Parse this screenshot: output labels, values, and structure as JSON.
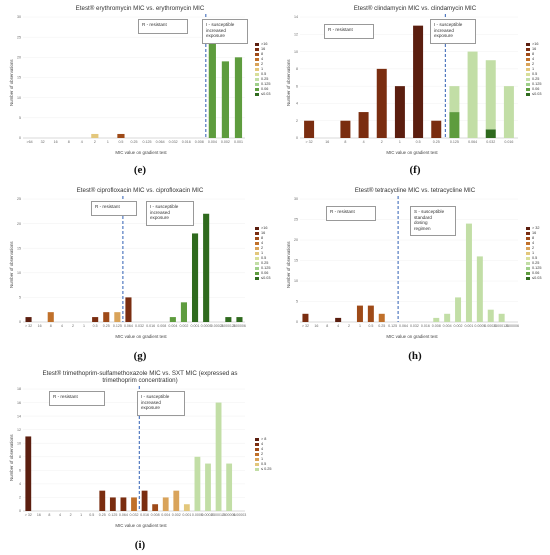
{
  "panels": [
    {
      "id": "e",
      "title": "Etest® erythromycin MIC vs. erythromycin MIC",
      "label": "(e)",
      "ylabel": "Number of observations",
      "xlabel": "MIC value on gradient test",
      "r_box": "R - resistant",
      "i_box": "I - susceptible\nincreased\nexposure",
      "categories": [
        ">64",
        "32",
        "16",
        "8",
        "4",
        "2",
        "1",
        "0.5",
        "0.25",
        "0.125",
        "0.064",
        "0.032",
        "0.016",
        "0.008",
        "0.004",
        "0.002",
        "0.001"
      ],
      "ylim": [
        0,
        30
      ],
      "yticks": [
        0,
        5,
        10,
        15,
        20,
        25,
        30
      ],
      "breakpoint_index": 13.5,
      "legend": [
        ">16",
        "16",
        "8",
        "4",
        "2",
        "1",
        "0.5",
        "0.25",
        "0.125",
        "0.06",
        "≤0.03"
      ],
      "legend_colors": [
        "#5b1e0f",
        "#7a2d10",
        "#9e4a18",
        "#c0702a",
        "#d9a35a",
        "#e3c77c",
        "#d8df9a",
        "#c2dea6",
        "#9fcf8a",
        "#5e9c3e",
        "#2f6a1e"
      ],
      "stacks": [
        [],
        [],
        [],
        [],
        [],
        [
          {
            "c": 5,
            "v": 1
          }
        ],
        [],
        [
          {
            "c": 2,
            "v": 1
          }
        ],
        [],
        [],
        [],
        [],
        [],
        [],
        [
          {
            "c": 9,
            "v": 25
          }
        ],
        [
          {
            "c": 9,
            "v": 19
          }
        ],
        [
          {
            "c": 9,
            "v": 20
          }
        ]
      ]
    },
    {
      "id": "f",
      "title": "Etest® clindamycin MIC vs. clindamycin MIC",
      "label": "(f)",
      "ylabel": "Number of observations",
      "xlabel": "MIC value on gradient test",
      "r_box": "R - resistant",
      "i_box": "I - susceptible\nincreased\nexposure",
      "categories": [
        "> 32",
        "16",
        "8",
        "4",
        "2",
        "1",
        "0.5",
        "0.25",
        "0.125",
        "0.064",
        "0.032",
        "0.016"
      ],
      "ylim": [
        0,
        14
      ],
      "yticks": [
        0,
        2,
        4,
        6,
        8,
        10,
        12,
        14
      ],
      "breakpoint_index": 7.5,
      "legend": [
        ">16",
        "16",
        "8",
        "4",
        "2",
        "1",
        "0.5",
        "0.25",
        "0.125",
        "0.06",
        "≤0.03"
      ],
      "legend_colors": [
        "#5b1e0f",
        "#7a2d10",
        "#9e4a18",
        "#c0702a",
        "#d9a35a",
        "#e3c77c",
        "#d8df9a",
        "#c2dea6",
        "#9fcf8a",
        "#5e9c3e",
        "#2f6a1e"
      ],
      "stacks": [
        [
          {
            "c": 1,
            "v": 2
          }
        ],
        [],
        [
          {
            "c": 1,
            "v": 2
          }
        ],
        [
          {
            "c": 1,
            "v": 3
          }
        ],
        [
          {
            "c": 1,
            "v": 8
          }
        ],
        [
          {
            "c": 0,
            "v": 6
          }
        ],
        [
          {
            "c": 0,
            "v": 13
          }
        ],
        [
          {
            "c": 1,
            "v": 2
          }
        ],
        [
          {
            "c": 9,
            "v": 3
          },
          {
            "c": 7,
            "v": 3
          }
        ],
        [
          {
            "c": 7,
            "v": 10
          }
        ],
        [
          {
            "c": 10,
            "v": 1
          },
          {
            "c": 7,
            "v": 8
          }
        ],
        [
          {
            "c": 7,
            "v": 6
          }
        ]
      ]
    },
    {
      "id": "g",
      "title": "Etest® ciprofloxacin MIC vs. ciprofloxacin MIC",
      "label": "(g)",
      "ylabel": "Number of observations",
      "xlabel": "MIC value on gradient test",
      "r_box": "R - resistant",
      "i_box": "I - susceptible\nincreased\nexposure",
      "categories": [
        "> 32",
        "16",
        "8",
        "4",
        "2",
        "1",
        "0.5",
        "0.25",
        "0.125",
        "0.064",
        "0.032",
        "0.016",
        "0.008",
        "0.004",
        "0.002",
        "0.001",
        "0.0005",
        "0.00025",
        "0.000125",
        "0.00006"
      ],
      "ylim": [
        0,
        25
      ],
      "yticks": [
        0,
        5,
        10,
        15,
        20,
        25
      ],
      "breakpoint_index": 8.5,
      "legend": [
        ">16",
        "16",
        "8",
        "4",
        "2",
        "1",
        "0.5",
        "0.25",
        "0.125",
        "0.06",
        "≤0.03"
      ],
      "legend_colors": [
        "#5b1e0f",
        "#7a2d10",
        "#9e4a18",
        "#c0702a",
        "#d9a35a",
        "#e3c77c",
        "#d8df9a",
        "#c2dea6",
        "#9fcf8a",
        "#5e9c3e",
        "#2f6a1e"
      ],
      "stacks": [
        [
          {
            "c": 0,
            "v": 1
          }
        ],
        [],
        [
          {
            "c": 3,
            "v": 2
          }
        ],
        [],
        [],
        [],
        [
          {
            "c": 1,
            "v": 1
          }
        ],
        [
          {
            "c": 2,
            "v": 2
          }
        ],
        [
          {
            "c": 4,
            "v": 2
          }
        ],
        [
          {
            "c": 1,
            "v": 5
          }
        ],
        [],
        [],
        [],
        [
          {
            "c": 9,
            "v": 1
          }
        ],
        [
          {
            "c": 9,
            "v": 4
          }
        ],
        [
          {
            "c": 10,
            "v": 18
          }
        ],
        [
          {
            "c": 10,
            "v": 22
          }
        ],
        [],
        [
          {
            "c": 10,
            "v": 1
          }
        ],
        [
          {
            "c": 10,
            "v": 1
          }
        ]
      ]
    },
    {
      "id": "h",
      "title": "Etest® tetracycline MIC vs. tetracycline MIC",
      "label": "(h)",
      "ylabel": "Number of observations",
      "xlabel": "MIC value on gradient test",
      "r_box": "R - resistant",
      "i_box": "S - susceptible\nstandard\ndosing\nregimen",
      "categories": [
        "> 32",
        "16",
        "8",
        "4",
        "2",
        "1",
        "0.5",
        "0.25",
        "0.125",
        "0.064",
        "0.032",
        "0.016",
        "0.008",
        "0.004",
        "0.002",
        "0.001",
        "0.0005",
        "0.00025",
        "0.000125",
        "0.00006"
      ],
      "ylim": [
        0,
        30
      ],
      "yticks": [
        0,
        5,
        10,
        15,
        20,
        25,
        30
      ],
      "breakpoint_index": 8.5,
      "legend": [
        "> 32",
        "16",
        "8",
        "4",
        "2",
        "1",
        "0.5",
        "0.25",
        "0.125",
        "0.06",
        "≤0.03"
      ],
      "legend_colors": [
        "#5b1e0f",
        "#7a2d10",
        "#9e4a18",
        "#c0702a",
        "#d9a35a",
        "#e3c77c",
        "#d8df9a",
        "#c2dea6",
        "#9fcf8a",
        "#5e9c3e",
        "#2f6a1e"
      ],
      "stacks": [
        [
          {
            "c": 1,
            "v": 2
          }
        ],
        [],
        [],
        [
          {
            "c": 0,
            "v": 1
          }
        ],
        [],
        [
          {
            "c": 2,
            "v": 4
          }
        ],
        [
          {
            "c": 2,
            "v": 4
          }
        ],
        [
          {
            "c": 3,
            "v": 2
          }
        ],
        [],
        [],
        [],
        [],
        [
          {
            "c": 7,
            "v": 1
          }
        ],
        [
          {
            "c": 7,
            "v": 2
          }
        ],
        [
          {
            "c": 7,
            "v": 6
          }
        ],
        [
          {
            "c": 7,
            "v": 24
          }
        ],
        [
          {
            "c": 7,
            "v": 16
          }
        ],
        [
          {
            "c": 7,
            "v": 3
          }
        ],
        [
          {
            "c": 7,
            "v": 2
          }
        ],
        []
      ]
    },
    {
      "id": "i",
      "title": "Etest® trimethoprim-sulfamethoxazole MIC vs. SXT MIC (expressed as\ntrimethoprim concentration)",
      "label": "(i)",
      "ylabel": "Number of observations",
      "xlabel": "MIC value on gradient test",
      "r_box": "R - resistant",
      "i_box": "I - susceptible\nincreased\nexposure",
      "categories": [
        "> 32",
        "16",
        "8",
        "4",
        "2",
        "1",
        "0.5",
        "0.25",
        "0.125",
        "0.064",
        "0.032",
        "0.016",
        "0.008",
        "0.004",
        "0.002",
        "0.001",
        "0.0005",
        "0.00025",
        "0.000125",
        "0.00006",
        "0.00003"
      ],
      "ylim": [
        0,
        18
      ],
      "yticks": [
        0,
        2,
        4,
        6,
        8,
        10,
        12,
        14,
        16,
        18
      ],
      "breakpoint_index": 10.5,
      "legend": [
        "> 8",
        "4",
        "4",
        "2",
        "1",
        "0.5",
        "≤ 0.25"
      ],
      "legend_colors": [
        "#5b1e0f",
        "#7a2d10",
        "#9e4a18",
        "#c0702a",
        "#d9a35a",
        "#e3c77c",
        "#c2dea6"
      ],
      "stacks": [
        [
          {
            "c": 0,
            "v": 11
          }
        ],
        [],
        [],
        [],
        [],
        [],
        [],
        [
          {
            "c": 1,
            "v": 3
          }
        ],
        [
          {
            "c": 1,
            "v": 2
          }
        ],
        [
          {
            "c": 1,
            "v": 2
          }
        ],
        [
          {
            "c": 3,
            "v": 2
          }
        ],
        [
          {
            "c": 1,
            "v": 3
          }
        ],
        [
          {
            "c": 2,
            "v": 1
          }
        ],
        [
          {
            "c": 4,
            "v": 2
          }
        ],
        [
          {
            "c": 4,
            "v": 3
          }
        ],
        [
          {
            "c": 5,
            "v": 1
          }
        ],
        [
          {
            "c": 6,
            "v": 8
          }
        ],
        [
          {
            "c": 6,
            "v": 7
          }
        ],
        [
          {
            "c": 6,
            "v": 16
          }
        ],
        [
          {
            "c": 6,
            "v": 7
          }
        ],
        []
      ]
    }
  ]
}
